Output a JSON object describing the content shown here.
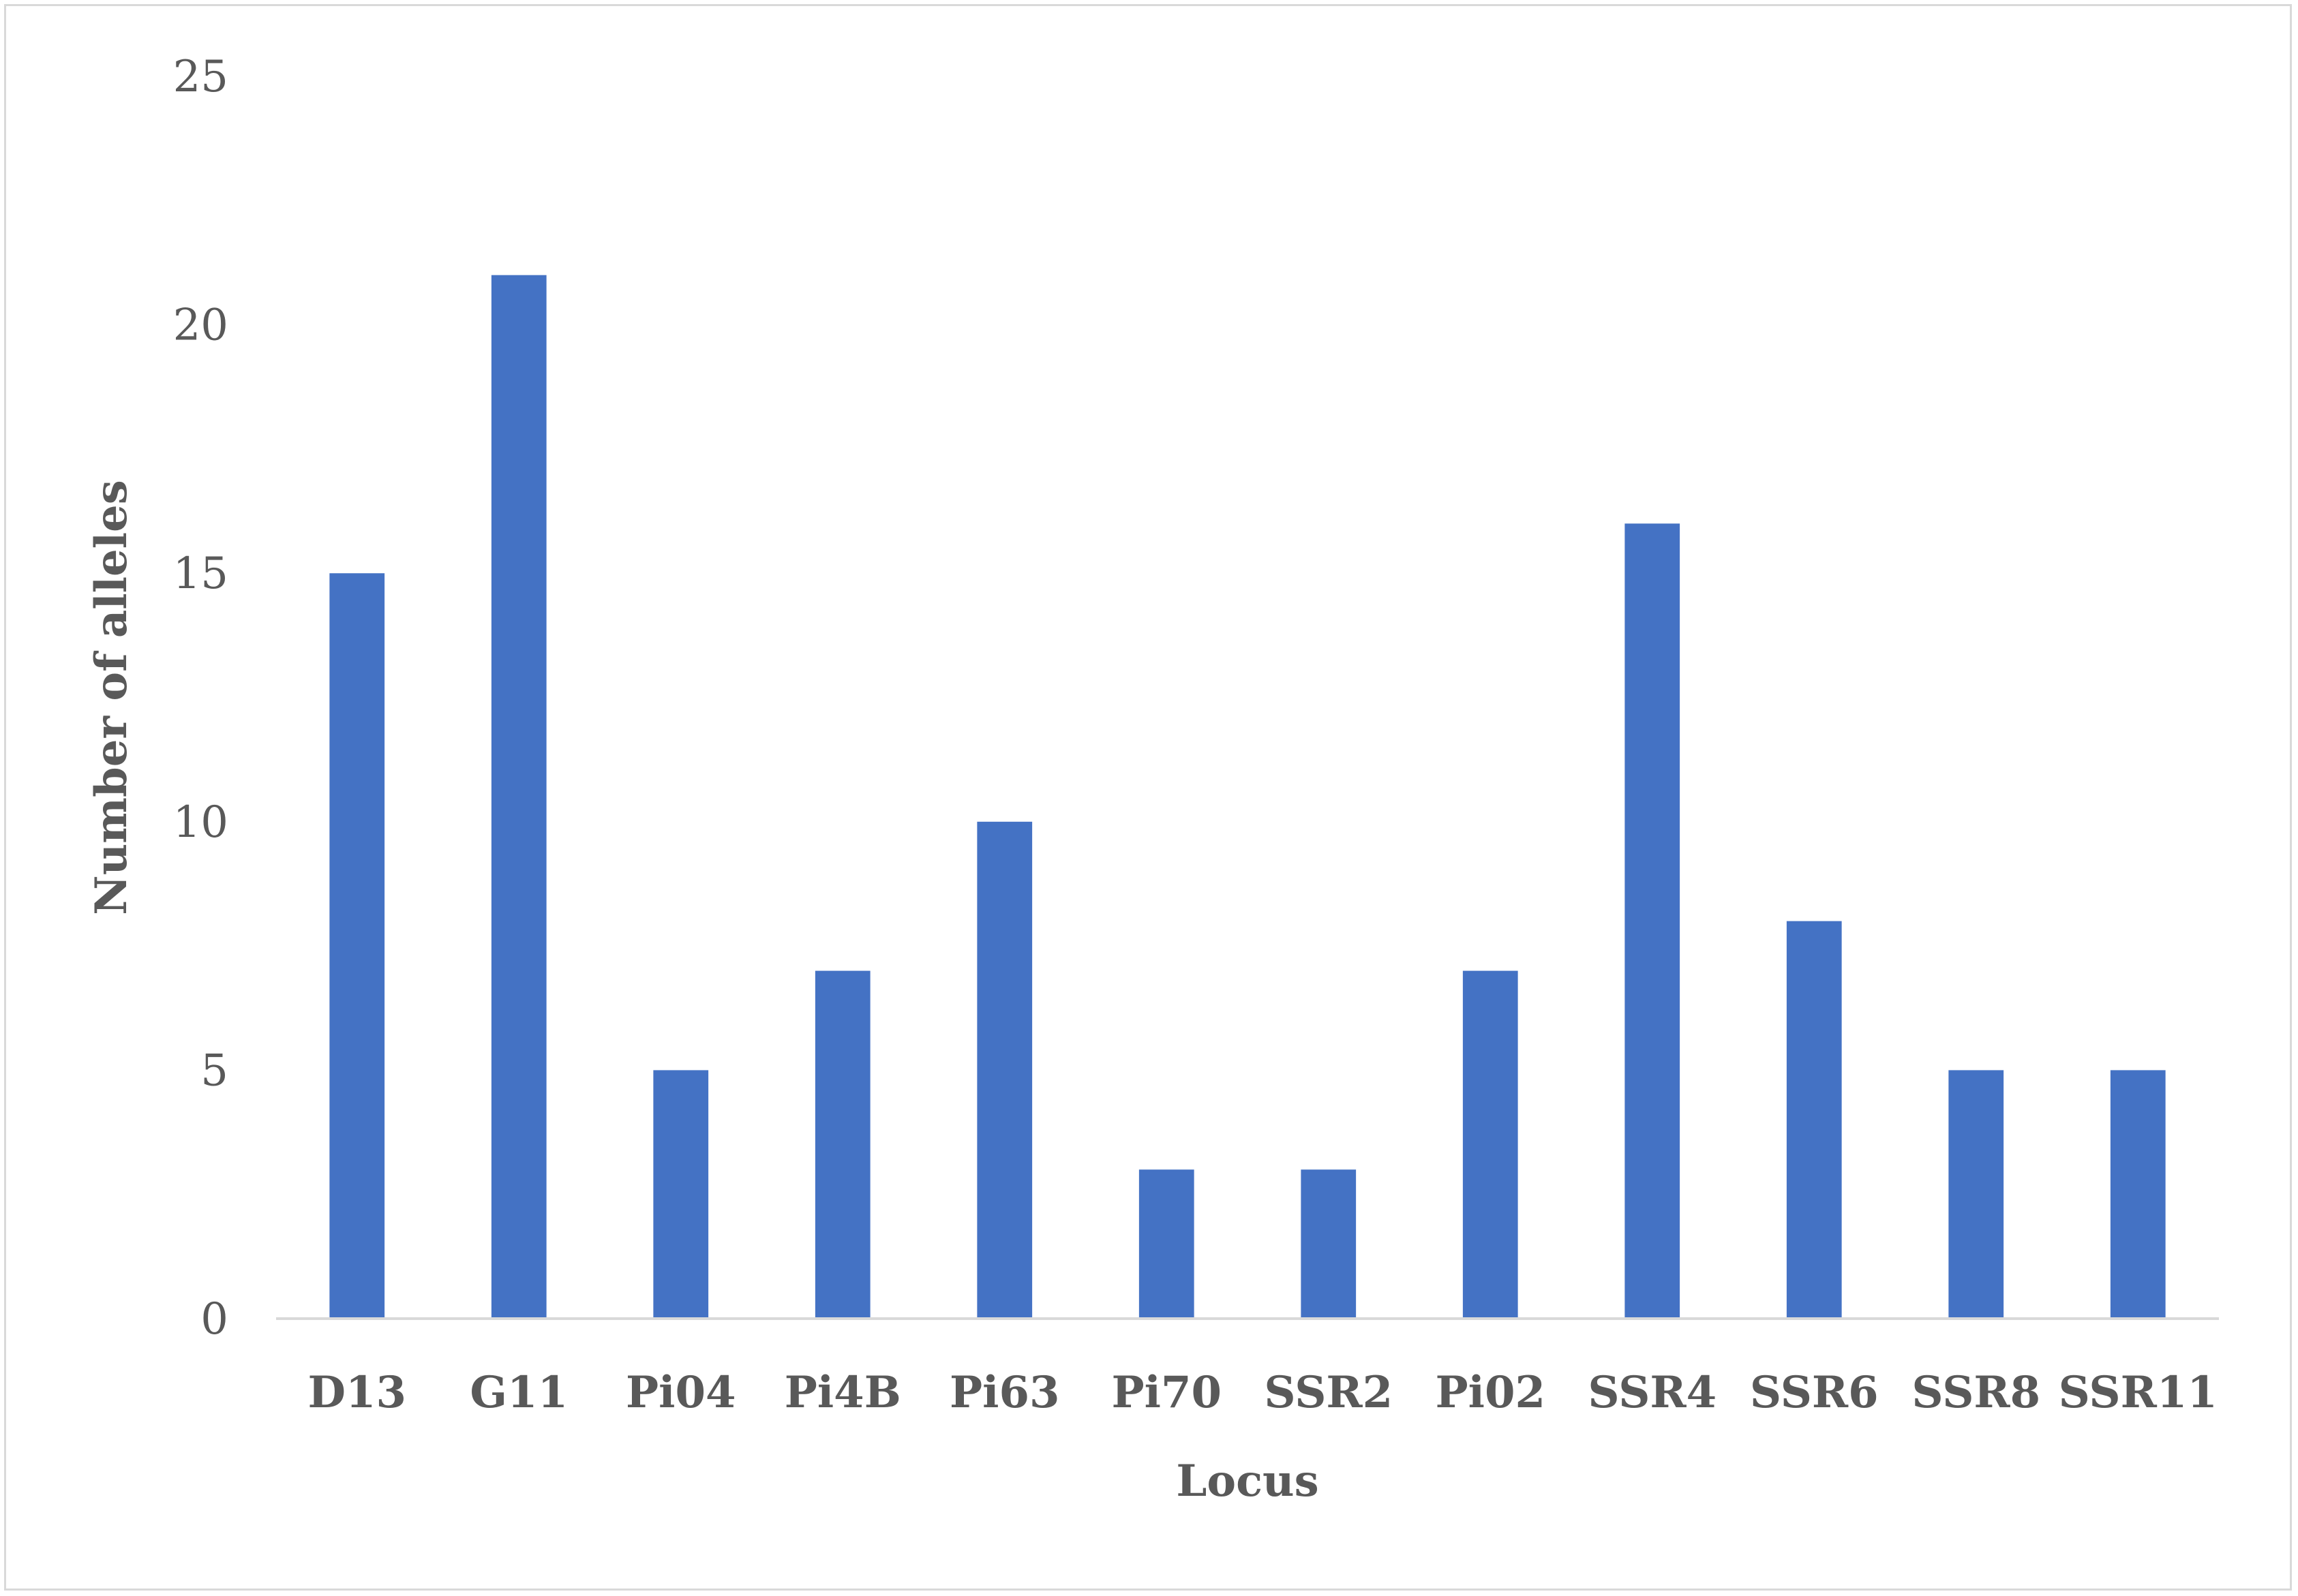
{
  "chart_data": {
    "type": "bar",
    "title": "",
    "xlabel": "Locus",
    "ylabel": "Number of alleles",
    "categories": [
      "D13",
      "G11",
      "Pi04",
      "Pi4B",
      "Pi63",
      "Pi70",
      "SSR2",
      "Pi02",
      "SSR4",
      "SSR6",
      "SSR8",
      "SSR11"
    ],
    "values": [
      15,
      21,
      5,
      7,
      10,
      3,
      3,
      7,
      16,
      8,
      5,
      5
    ],
    "ylim": [
      0,
      25
    ],
    "yticks": [
      "0",
      "5",
      "10",
      "15",
      "20",
      "25"
    ],
    "grid": false,
    "legend": "none",
    "bar_color": "#4472c4",
    "axis_color": "#d9d9d9",
    "text_color": "#595959"
  }
}
